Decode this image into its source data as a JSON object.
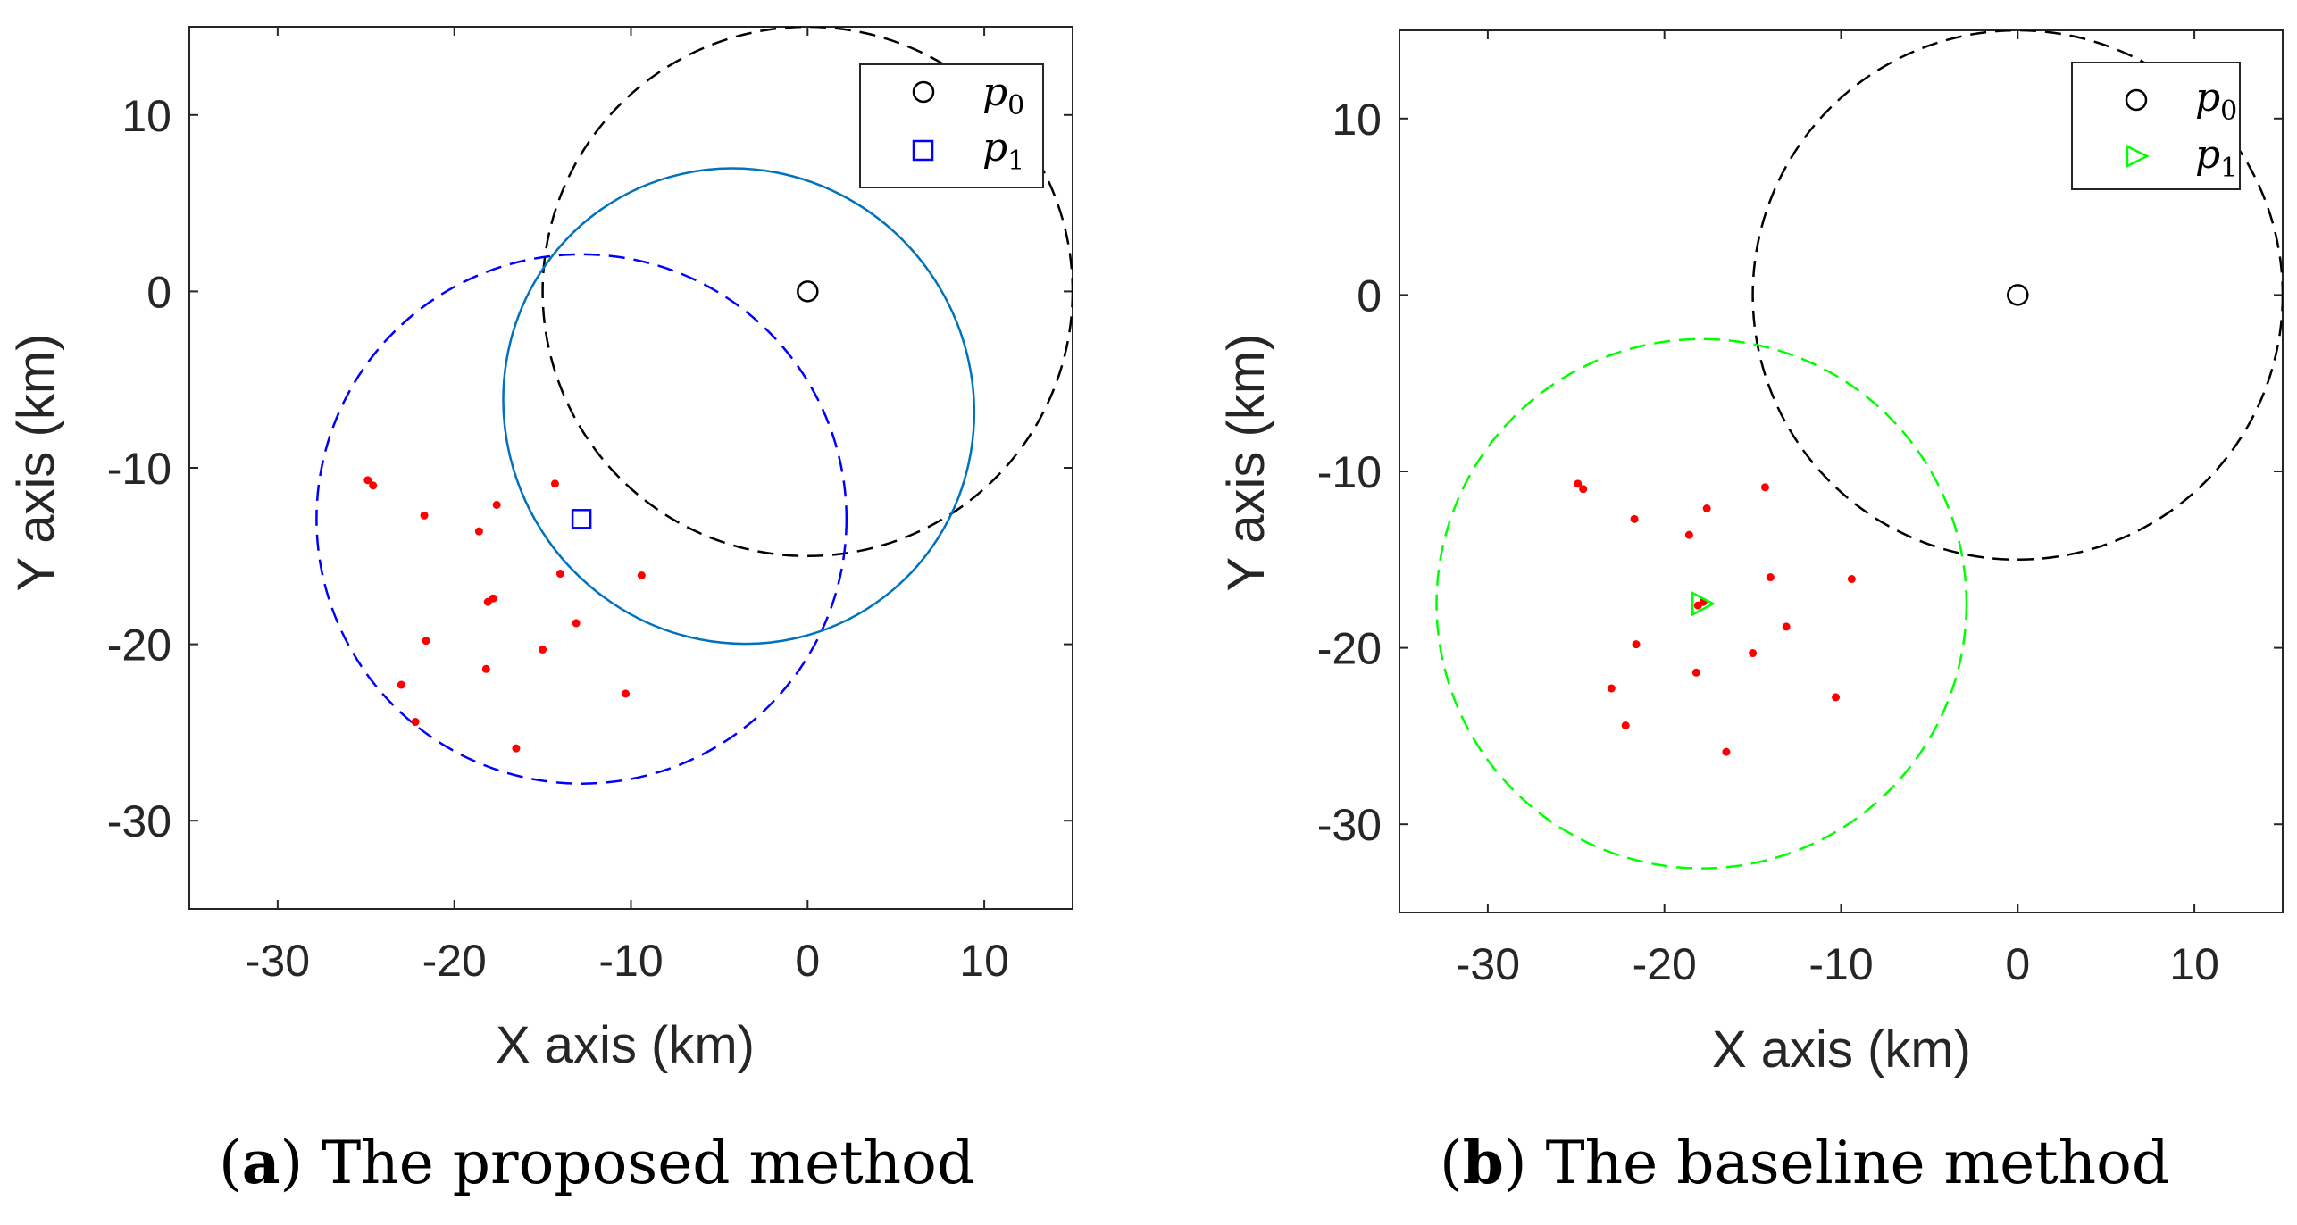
{
  "chart_data": [
    {
      "type": "scatter",
      "caption": {
        "open": "(",
        "letter": "a",
        "close": ")",
        "text": " The proposed method"
      },
      "xlabel": "X axis (km)",
      "ylabel": "Y axis (km)",
      "xlim": [
        -35,
        15
      ],
      "ylim": [
        -35,
        15
      ],
      "xticks": [
        -30,
        -20,
        -10,
        0,
        10
      ],
      "yticks": [
        10,
        0,
        -10,
        -20,
        -30
      ],
      "legend": {
        "placement": "top-right",
        "entries": [
          {
            "symbol": "circle",
            "color": "#000000",
            "label": "p",
            "sub": "0"
          },
          {
            "symbol": "square",
            "color": "#0000ff",
            "label": "p",
            "sub": "1"
          }
        ]
      },
      "points": {
        "p0": {
          "x": 0,
          "y": 0,
          "color": "#000000",
          "marker": "circle"
        },
        "p1": {
          "x": -12.8,
          "y": -12.9,
          "color": "#0000ff",
          "marker": "square"
        }
      },
      "circles": [
        {
          "name": "p0-range",
          "cx": 0,
          "cy": 0,
          "r": 15,
          "color": "#000000",
          "dash": true
        },
        {
          "name": "p1-range",
          "cx": -12.8,
          "cy": -12.9,
          "r": 15,
          "color": "#0000ff",
          "dash": true
        }
      ],
      "ellipse": {
        "cx": -3.9,
        "cy": -6.5,
        "rx": 13.2,
        "ry": 13.6,
        "rotation_deg": 35,
        "color": "#0072bd"
      },
      "scatter": {
        "color": "#ff0000",
        "x": [
          -24.9,
          -24.6,
          -21.7,
          -18.6,
          -17.6,
          -14.3,
          -14.0,
          -9.4,
          -18.1,
          -17.8,
          -13.1,
          -21.6,
          -15.0,
          -18.2,
          -10.3,
          -23.0,
          -22.2,
          -16.5
        ],
        "y": [
          -10.7,
          -11.0,
          -12.7,
          -13.6,
          -12.1,
          -10.9,
          -16.0,
          -16.1,
          -17.6,
          -17.4,
          -18.8,
          -19.8,
          -20.3,
          -21.4,
          -22.8,
          -22.3,
          -24.4,
          -25.9
        ]
      }
    },
    {
      "type": "scatter",
      "caption": {
        "open": "(",
        "letter": "b",
        "close": ")",
        "text": " The baseline method"
      },
      "xlabel": "X axis (km)",
      "ylabel": "Y axis (km)",
      "xlim": [
        -35,
        15
      ],
      "ylim": [
        -35,
        15
      ],
      "xticks": [
        -30,
        -20,
        -10,
        0,
        10
      ],
      "yticks": [
        10,
        0,
        -10,
        -20,
        -30
      ],
      "legend": {
        "placement": "top-right",
        "entries": [
          {
            "symbol": "circle",
            "color": "#000000",
            "label": "p",
            "sub": "0"
          },
          {
            "symbol": "triangle",
            "color": "#00ff00",
            "label": "p",
            "sub": "1"
          }
        ]
      },
      "points": {
        "p0": {
          "x": 0,
          "y": 0,
          "color": "#000000",
          "marker": "circle"
        },
        "p1": {
          "x": -17.9,
          "y": -17.5,
          "color": "#00ff00",
          "marker": "triangle"
        }
      },
      "circles": [
        {
          "name": "p0-range",
          "cx": 0,
          "cy": 0,
          "r": 15,
          "color": "#000000",
          "dash": true
        },
        {
          "name": "p1-range",
          "cx": -17.9,
          "cy": -17.5,
          "r": 15,
          "color": "#00ff00",
          "dash": true
        }
      ],
      "scatter": {
        "color": "#ff0000",
        "x": [
          -24.9,
          -24.6,
          -21.7,
          -18.6,
          -17.6,
          -14.3,
          -14.0,
          -9.4,
          -18.1,
          -17.8,
          -13.1,
          -21.6,
          -15.0,
          -18.2,
          -10.3,
          -23.0,
          -22.2,
          -16.5
        ],
        "y": [
          -10.7,
          -11.0,
          -12.7,
          -13.6,
          -12.1,
          -10.9,
          -16.0,
          -16.1,
          -17.6,
          -17.4,
          -18.8,
          -19.8,
          -20.3,
          -21.4,
          -22.8,
          -22.3,
          -24.4,
          -25.9
        ]
      }
    }
  ]
}
